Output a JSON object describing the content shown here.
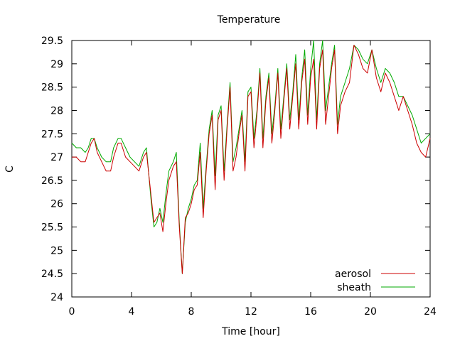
{
  "chart_data": {
    "type": "line",
    "title": "Temperature",
    "xlabel": "Time [hour]",
    "ylabel": "C",
    "xlim": [
      0,
      24
    ],
    "ylim": [
      24,
      29.5
    ],
    "xticks": [
      0,
      4,
      8,
      12,
      16,
      20,
      24
    ],
    "yticks": [
      24,
      24.5,
      25,
      25.5,
      26,
      26.5,
      27,
      27.5,
      28,
      28.5,
      29,
      29.5
    ],
    "grid": false,
    "legend": "bottom-right",
    "series": [
      {
        "name": "aerosol",
        "color": "#cc0000",
        "x": [
          0,
          0.3,
          0.6,
          0.9,
          1.1,
          1.3,
          1.5,
          1.7,
          2.0,
          2.3,
          2.6,
          2.8,
          3.1,
          3.3,
          3.6,
          3.9,
          4.2,
          4.5,
          4.8,
          5.0,
          5.3,
          5.5,
          5.7,
          5.9,
          6.1,
          6.3,
          6.5,
          6.8,
          7.0,
          7.2,
          7.4,
          7.6,
          7.8,
          8.0,
          8.2,
          8.4,
          8.6,
          8.8,
          9.0,
          9.2,
          9.4,
          9.6,
          9.8,
          10.0,
          10.2,
          10.4,
          10.6,
          10.8,
          11.0,
          11.2,
          11.4,
          11.6,
          11.8,
          12.0,
          12.2,
          12.4,
          12.6,
          12.8,
          13.0,
          13.2,
          13.4,
          13.6,
          13.8,
          14.0,
          14.2,
          14.4,
          14.6,
          14.8,
          15.0,
          15.2,
          15.4,
          15.6,
          15.8,
          16.0,
          16.2,
          16.4,
          16.6,
          16.8,
          17.0,
          17.2,
          17.4,
          17.6,
          17.8,
          18.0,
          18.3,
          18.6,
          18.9,
          19.2,
          19.5,
          19.8,
          20.1,
          20.4,
          20.7,
          21.0,
          21.3,
          21.6,
          21.9,
          22.2,
          22.5,
          22.8,
          23.1,
          23.4,
          23.7,
          24.0
        ],
        "y": [
          27.0,
          27.0,
          26.9,
          26.9,
          27.1,
          27.3,
          27.4,
          27.1,
          26.9,
          26.7,
          26.7,
          27.0,
          27.3,
          27.3,
          27.0,
          26.9,
          26.8,
          26.7,
          27.0,
          27.1,
          26.2,
          25.6,
          25.7,
          25.8,
          25.4,
          26.0,
          26.5,
          26.8,
          26.9,
          25.5,
          24.5,
          25.7,
          25.8,
          26.0,
          26.3,
          26.4,
          27.1,
          25.7,
          26.7,
          27.5,
          27.9,
          26.3,
          27.8,
          28.0,
          26.5,
          27.6,
          28.5,
          26.7,
          27.0,
          27.5,
          27.9,
          26.7,
          28.3,
          28.4,
          27.2,
          27.9,
          28.8,
          27.2,
          28.2,
          28.7,
          27.3,
          28.0,
          28.8,
          27.4,
          28.2,
          28.9,
          27.6,
          28.3,
          29.0,
          27.6,
          28.6,
          29.1,
          27.7,
          28.7,
          29.1,
          27.6,
          28.9,
          29.3,
          27.7,
          28.3,
          28.9,
          29.3,
          27.5,
          28.1,
          28.4,
          28.6,
          29.4,
          29.2,
          28.9,
          28.8,
          29.3,
          28.7,
          28.4,
          28.8,
          28.6,
          28.3,
          28.0,
          28.3,
          28.0,
          27.7,
          27.3,
          27.1,
          27.0,
          27.4
        ]
      },
      {
        "name": "sheath",
        "color": "#00aa00",
        "x": [
          0,
          0.3,
          0.6,
          0.9,
          1.1,
          1.3,
          1.5,
          1.7,
          2.0,
          2.3,
          2.6,
          2.8,
          3.1,
          3.3,
          3.6,
          3.9,
          4.2,
          4.5,
          4.8,
          5.0,
          5.3,
          5.5,
          5.7,
          5.9,
          6.1,
          6.3,
          6.5,
          6.8,
          7.0,
          7.2,
          7.4,
          7.6,
          7.8,
          8.0,
          8.2,
          8.4,
          8.6,
          8.8,
          9.0,
          9.2,
          9.4,
          9.6,
          9.8,
          10.0,
          10.2,
          10.4,
          10.6,
          10.8,
          11.0,
          11.2,
          11.4,
          11.6,
          11.8,
          12.0,
          12.2,
          12.4,
          12.6,
          12.8,
          13.0,
          13.2,
          13.4,
          13.6,
          13.8,
          14.0,
          14.2,
          14.4,
          14.6,
          14.8,
          15.0,
          15.2,
          15.4,
          15.6,
          15.8,
          16.0,
          16.2,
          16.4,
          16.6,
          16.8,
          17.0,
          17.2,
          17.4,
          17.6,
          17.8,
          18.0,
          18.3,
          18.6,
          18.9,
          19.2,
          19.5,
          19.8,
          20.1,
          20.4,
          20.7,
          21.0,
          21.3,
          21.6,
          21.9,
          22.2,
          22.5,
          22.8,
          23.1,
          23.4,
          23.7,
          24.0
        ],
        "y": [
          27.3,
          27.2,
          27.2,
          27.1,
          27.2,
          27.4,
          27.4,
          27.2,
          27.0,
          26.9,
          26.9,
          27.2,
          27.4,
          27.4,
          27.2,
          27.0,
          26.9,
          26.8,
          27.1,
          27.2,
          26.1,
          25.5,
          25.6,
          25.9,
          25.6,
          26.2,
          26.7,
          26.9,
          27.1,
          25.6,
          24.5,
          25.6,
          25.9,
          26.1,
          26.4,
          26.5,
          27.3,
          25.9,
          26.8,
          27.6,
          28.0,
          26.6,
          27.9,
          28.1,
          26.7,
          27.7,
          28.6,
          26.9,
          27.2,
          27.6,
          28.0,
          26.9,
          28.4,
          28.5,
          27.4,
          28.0,
          28.9,
          27.4,
          28.3,
          28.8,
          27.5,
          28.1,
          28.9,
          27.6,
          28.3,
          29.0,
          27.8,
          28.4,
          29.2,
          27.8,
          28.7,
          29.3,
          27.9,
          28.9,
          29.5,
          27.8,
          29.0,
          29.5,
          28.0,
          28.5,
          29.0,
          29.4,
          27.7,
          28.3,
          28.6,
          28.9,
          29.4,
          29.3,
          29.1,
          29.0,
          29.3,
          28.9,
          28.6,
          28.9,
          28.8,
          28.6,
          28.3,
          28.3,
          28.1,
          27.9,
          27.6,
          27.3,
          27.4,
          27.5
        ]
      }
    ]
  }
}
